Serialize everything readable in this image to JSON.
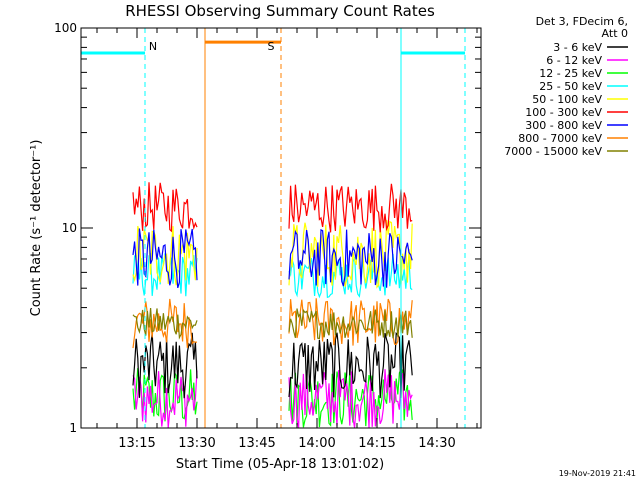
{
  "chart_data": {
    "type": "line",
    "title": "RHESSI Observing Summary Count Rates",
    "xlabel": "Start Time (05-Apr-18 13:01:02)",
    "ylabel": "Count Rate (s⁻¹ detector⁻¹)",
    "y_scale": "log",
    "ylim": [
      1,
      100
    ],
    "y_ticks": [
      {
        "value": 1,
        "label": "1"
      },
      {
        "value": 10,
        "label": "10"
      },
      {
        "value": 100,
        "label": "100"
      }
    ],
    "xlim": [
      "13:01",
      "14:41"
    ],
    "x_ticks": [
      "13:15",
      "13:30",
      "13:45",
      "14:00",
      "14:15",
      "14:30"
    ],
    "legend_position": "top-right",
    "legend_header": [
      "Det 3, FDecim 6,",
      "Att 0"
    ],
    "series": [
      {
        "name": "3 - 6 keV",
        "color": "#000000",
        "typical_range": [
          1.4,
          3.0
        ]
      },
      {
        "name": "6 - 12 keV",
        "color": "#ff00ff",
        "typical_range": [
          1.0,
          2.0
        ]
      },
      {
        "name": "12 - 25 keV",
        "color": "#00ff00",
        "typical_range": [
          1.0,
          2.0
        ]
      },
      {
        "name": "25 - 50 keV",
        "color": "#00ffff",
        "typical_range": [
          4.5,
          7.5
        ]
      },
      {
        "name": "50 - 100 keV",
        "color": "#ffff00",
        "typical_range": [
          5.0,
          11.0
        ]
      },
      {
        "name": "100 - 300 keV",
        "color": "#ff0000",
        "typical_range": [
          9.5,
          17.0
        ]
      },
      {
        "name": "300 - 800 keV",
        "color": "#0000ff",
        "typical_range": [
          5.0,
          10.0
        ]
      },
      {
        "name": "800 - 7000 keV",
        "color": "#ff8000",
        "typical_range": [
          2.5,
          4.5
        ]
      },
      {
        "name": "7000 - 15000 keV",
        "color": "#808000",
        "typical_range": [
          2.8,
          4.0
        ]
      }
    ],
    "data_segments": [
      {
        "start": "13:14",
        "end": "13:30"
      },
      {
        "start": "13:53",
        "end": "14:24"
      }
    ],
    "flags": [
      {
        "label": "N",
        "color": "#00ffff",
        "level": 75,
        "spans": [
          [
            "13:01",
            "13:17"
          ],
          [
            "14:21",
            "14:37"
          ]
        ],
        "edges": [
          "13:01",
          "13:17",
          "14:21",
          "14:37"
        ]
      },
      {
        "label": "S",
        "color": "#ff8000",
        "level": 85,
        "spans": [
          [
            "13:32",
            "13:51"
          ]
        ],
        "edges": [
          "13:32",
          "13:51"
        ]
      }
    ],
    "footer_date": "19-Nov-2019 21:41"
  }
}
